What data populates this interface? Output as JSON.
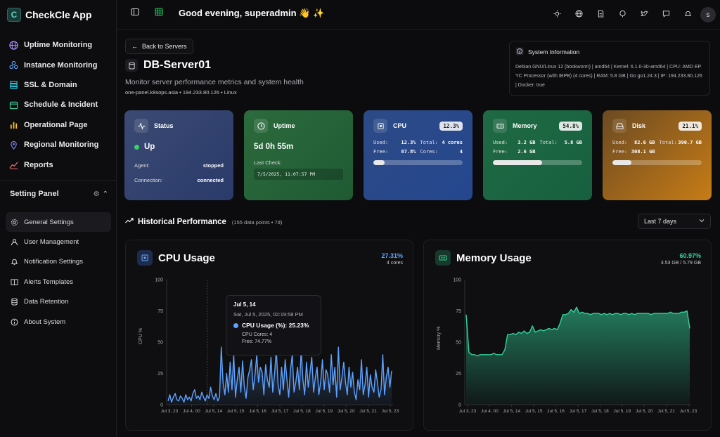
{
  "brand": {
    "name": "CheckCle App"
  },
  "topbar": {
    "greeting": "Good evening, superadmin 👋 ✨",
    "avatar_letter": "s"
  },
  "nav": [
    {
      "label": "Uptime Monitoring",
      "icon": "globe-icon",
      "color": "#a78bfa"
    },
    {
      "label": "Instance Monitoring",
      "icon": "cluster-icon",
      "color": "#60a5fa"
    },
    {
      "label": "SSL & Domain",
      "icon": "layers-icon",
      "color": "#22d3ee"
    },
    {
      "label": "Schedule & Incident",
      "icon": "calendar-icon",
      "color": "#34d399"
    },
    {
      "label": "Operational Page",
      "icon": "bar-chart-icon",
      "color": "#fbbf24"
    },
    {
      "label": "Regional Monitoring",
      "icon": "map-pin-icon",
      "color": "#818cf8"
    },
    {
      "label": "Reports",
      "icon": "line-chart-icon",
      "color": "#f87171"
    }
  ],
  "settings": {
    "title": "Setting Panel",
    "items": [
      {
        "label": "General Settings",
        "icon": "gear-icon"
      },
      {
        "label": "User Management",
        "icon": "user-icon"
      },
      {
        "label": "Notification Settings",
        "icon": "bell-icon"
      },
      {
        "label": "Alerts Templates",
        "icon": "book-icon"
      },
      {
        "label": "Data Retention",
        "icon": "database-icon"
      },
      {
        "label": "About System",
        "icon": "info-icon"
      }
    ]
  },
  "server": {
    "back_label": "Back to Servers",
    "name": "DB-Server01",
    "subtitle": "Monitor server performance metrics and system health",
    "meta": "one-panel.k8sops.asia • 194.233.80.126 • Linux"
  },
  "system_info": {
    "title": "System Information",
    "text": "Debian GNU/Linux 12 (bookworm) | amd64 | Kernel: 6.1.0-30-amd64 | CPU: AMD EPYC Processor (with IBPB) (4 cores) | RAM: 5.8 GB | Go go1.24.3 | IP: 194.233.80.126 | Docker: true"
  },
  "cards": {
    "status": {
      "title": "Status",
      "value": "Up",
      "agent_label": "Agent:",
      "agent_value": "stopped",
      "conn_label": "Connection:",
      "conn_value": "connected"
    },
    "uptime": {
      "title": "Uptime",
      "value": "5d 0h 55m",
      "last_label": "Last Check:",
      "last_value": "7/5/2025, 11:07:57 PM"
    },
    "cpu": {
      "title": "CPU",
      "badge": "12.3%",
      "used_label": "Used:",
      "used": "12.3%",
      "total_label": "Total:",
      "total": "4 cores",
      "free_label": "Free:",
      "free": "87.8%",
      "cores_label": "Cores:",
      "cores": "4",
      "progress": 0.123
    },
    "memory": {
      "title": "Memory",
      "badge": "54.8%",
      "used_label": "Used:",
      "used": "3.2 GB",
      "total_label": "Total:",
      "total": "5.8 GB",
      "free_label": "Free:",
      "free": "2.6 GB",
      "progress": 0.548
    },
    "disk": {
      "title": "Disk",
      "badge": "21.1%",
      "used_label": "Used:",
      "used": "82.6 GB",
      "total_label": "Total:",
      "total": "390.7 GB",
      "free_label": "Free:",
      "free": "308.1 GB",
      "progress": 0.211
    }
  },
  "historical": {
    "title": "Historical Performance",
    "sub": "(155 data points • 7d)",
    "range": "Last 7 days"
  },
  "cpu_chart": {
    "title": "CPU Usage",
    "pct": "27.31%",
    "sub": "4 cores",
    "ylabel": "CPU %",
    "color": "#5ea3ff"
  },
  "mem_chart": {
    "title": "Memory Usage",
    "pct": "60.97%",
    "sub": "3.53 GB / 5.79 GB",
    "ylabel": "Memory %",
    "color": "#34d399"
  },
  "tooltip": {
    "title": "Jul 5, 14",
    "date": "Sat, Jul 5, 2025, 02:19:58 PM",
    "value": "CPU Usage (%): 25.23%",
    "cores": "CPU Cores: 4",
    "free": "Free: 74.77%"
  },
  "chart_data": [
    {
      "type": "area",
      "ylabel": "CPU %",
      "ylim": [
        0,
        100
      ],
      "yticks": [
        0,
        25,
        50,
        75,
        100
      ],
      "xticks": [
        "Jul 3, 23",
        "Jul 4, 00",
        "Jul 5, 14",
        "Jul 5, 15",
        "Jul 5, 16",
        "Jul 5, 17",
        "Jul 5, 18",
        "Jul 5, 19",
        "Jul 5, 20",
        "Jul 5, 21",
        "Jul 5, 23"
      ],
      "values": [
        3,
        8,
        2,
        6,
        9,
        4,
        3,
        7,
        5,
        2,
        8,
        4,
        6,
        3,
        9,
        12,
        5,
        7,
        4,
        10,
        6,
        3,
        8,
        5,
        14,
        7,
        4,
        9,
        3,
        6,
        46,
        18,
        8,
        25,
        10,
        34,
        12,
        40,
        6,
        20,
        30,
        10,
        35,
        14,
        5,
        22,
        28,
        36,
        12,
        24,
        40,
        18,
        30,
        26,
        8,
        32,
        20,
        14,
        38,
        10,
        24,
        44,
        16,
        8,
        30,
        12,
        36,
        20,
        6,
        28,
        40,
        10,
        18,
        30,
        12,
        44,
        20,
        8,
        34,
        14,
        26,
        38,
        10,
        22,
        30,
        8,
        18,
        36,
        12,
        28,
        24,
        10,
        40,
        16,
        30,
        6,
        46,
        12,
        22,
        34,
        18,
        8,
        30,
        14,
        26,
        10,
        4,
        20,
        12,
        36,
        8,
        16,
        30,
        6,
        24,
        14,
        10,
        28,
        18,
        6,
        12,
        40,
        8,
        22,
        30,
        14,
        27
      ]
    },
    {
      "type": "area",
      "ylabel": "Memory %",
      "ylim": [
        0,
        100
      ],
      "yticks": [
        0,
        25,
        50,
        75,
        100
      ],
      "xticks": [
        "Jul 3, 23",
        "Jul 4, 00",
        "Jul 5, 14",
        "Jul 5, 15",
        "Jul 5, 16",
        "Jul 5, 17",
        "Jul 5, 18",
        "Jul 5, 19",
        "Jul 5, 20",
        "Jul 5, 21",
        "Jul 5, 23"
      ],
      "values": [
        72,
        42,
        40,
        40,
        39,
        40,
        40,
        40,
        40,
        40,
        41,
        40,
        40,
        40,
        44,
        56,
        56,
        57,
        56,
        58,
        57,
        59,
        57,
        58,
        63,
        58,
        59,
        60,
        59,
        60,
        61,
        60,
        61,
        60,
        65,
        72,
        72,
        73,
        76,
        74,
        78,
        73,
        74,
        73,
        73,
        72,
        73,
        73,
        73,
        72,
        73,
        72,
        73,
        72,
        73,
        73,
        72,
        73,
        73,
        72,
        73,
        72,
        73,
        73,
        73,
        73,
        73,
        72,
        73,
        73,
        73,
        73,
        73,
        73,
        74,
        73,
        73,
        73,
        74,
        74,
        75,
        61
      ]
    }
  ]
}
